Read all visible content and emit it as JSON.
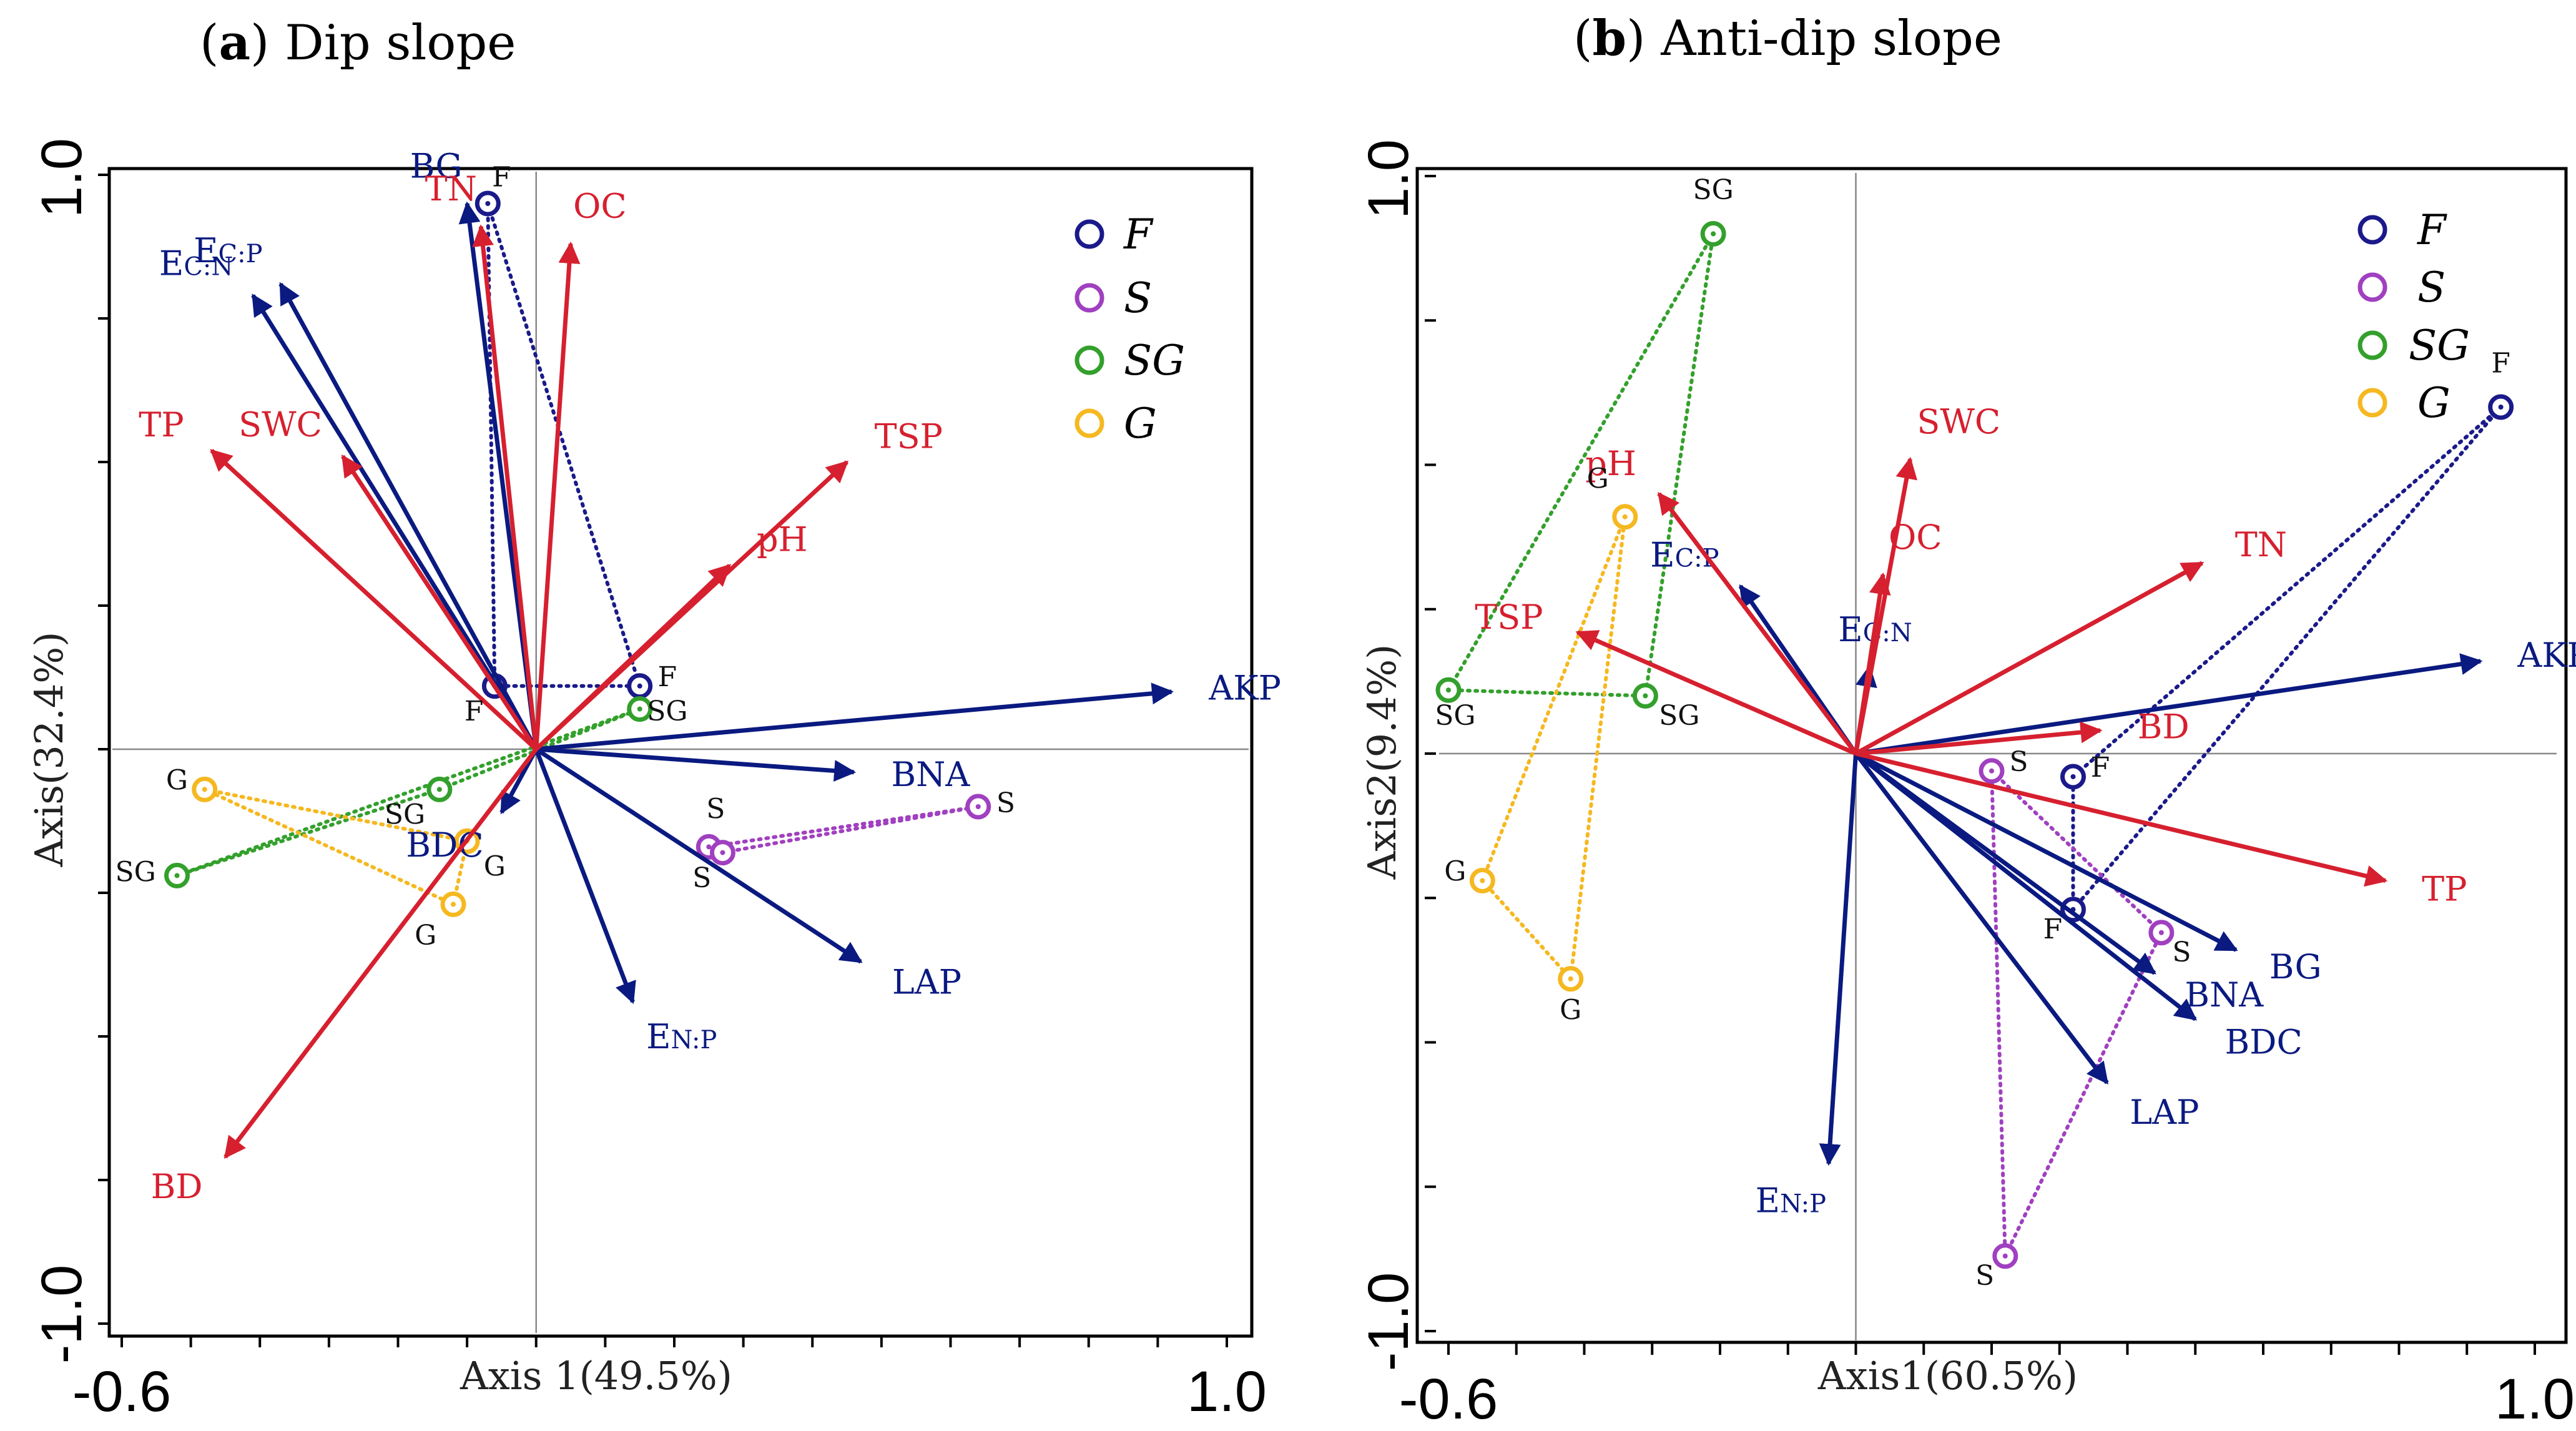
{
  "colors": {
    "env_vector": "#d6202f",
    "enzyme_vector": "#0a1a80",
    "F": "#1a1a8a",
    "S": "#a040c0",
    "SG": "#33a02c",
    "G": "#f5b820"
  },
  "chart_data": [
    {
      "type": "scatter",
      "panel_letter": "a",
      "title": "Dip slope",
      "xlabel": "Axis 1(49.5%)",
      "ylabel": "Axis(32.4%)",
      "xlim": [
        -0.6,
        1.0
      ],
      "ylim": [
        -1.0,
        1.0
      ],
      "x_tick_labels": [
        "-0.6",
        "1.0"
      ],
      "y_tick_labels": [
        "1.0",
        "-1.0"
      ],
      "legend": [
        "F",
        "S",
        "SG",
        "G"
      ],
      "env_vectors": [
        {
          "name": "TN",
          "x": -0.08,
          "y": 0.91
        },
        {
          "name": "OC",
          "x": 0.05,
          "y": 0.88
        },
        {
          "name": "TSP",
          "x": 0.45,
          "y": 0.5
        },
        {
          "name": "pH",
          "x": 0.28,
          "y": 0.32
        },
        {
          "name": "TP",
          "x": -0.47,
          "y": 0.52
        },
        {
          "name": "SWC",
          "x": -0.28,
          "y": 0.51
        },
        {
          "name": "BD",
          "x": -0.45,
          "y": -0.71
        }
      ],
      "enzyme_vectors": [
        {
          "name": "BG",
          "x": -0.1,
          "y": 0.95
        },
        {
          "name": "EC:P",
          "x": -0.37,
          "y": 0.81
        },
        {
          "name": "EC:N",
          "x": -0.41,
          "y": 0.79
        },
        {
          "name": "AKP",
          "x": 0.92,
          "y": 0.1
        },
        {
          "name": "BNA",
          "x": 0.46,
          "y": -0.04
        },
        {
          "name": "LAP",
          "x": 0.47,
          "y": -0.37
        },
        {
          "name": "EN:P",
          "x": 0.14,
          "y": -0.44
        },
        {
          "name": "BDC",
          "x": -0.05,
          "y": -0.11
        }
      ],
      "site_groups": [
        {
          "group": "F",
          "points": [
            {
              "x": -0.07,
              "y": 0.95
            },
            {
              "x": -0.06,
              "y": 0.11
            },
            {
              "x": 0.15,
              "y": 0.11
            }
          ]
        },
        {
          "group": "S",
          "points": [
            {
              "x": 0.25,
              "y": -0.17
            },
            {
              "x": 0.27,
              "y": -0.18
            },
            {
              "x": 0.64,
              "y": -0.1
            }
          ]
        },
        {
          "group": "SG",
          "points": [
            {
              "x": -0.14,
              "y": -0.07
            },
            {
              "x": -0.52,
              "y": -0.22
            },
            {
              "x": 0.15,
              "y": 0.07
            }
          ]
        },
        {
          "group": "G",
          "points": [
            {
              "x": -0.48,
              "y": -0.07
            },
            {
              "x": -0.1,
              "y": -0.16
            },
            {
              "x": -0.12,
              "y": -0.27
            }
          ]
        }
      ],
      "site_labels": [
        {
          "text": "F",
          "x": -0.05,
          "y": 0.98
        },
        {
          "text": "F",
          "x": -0.09,
          "y": 0.05
        },
        {
          "text": "F",
          "x": 0.19,
          "y": 0.11
        },
        {
          "text": "S",
          "x": 0.26,
          "y": -0.12
        },
        {
          "text": "S",
          "x": 0.24,
          "y": -0.24
        },
        {
          "text": "S",
          "x": 0.68,
          "y": -0.11
        },
        {
          "text": "SG",
          "x": 0.19,
          "y": 0.05
        },
        {
          "text": "SG",
          "x": -0.19,
          "y": -0.13
        },
        {
          "text": "SG",
          "x": -0.58,
          "y": -0.23
        },
        {
          "text": "G",
          "x": -0.52,
          "y": -0.07
        },
        {
          "text": "G",
          "x": -0.06,
          "y": -0.22
        },
        {
          "text": "G",
          "x": -0.16,
          "y": -0.34
        }
      ]
    },
    {
      "type": "scatter",
      "panel_letter": "b",
      "title": "Anti-dip slope",
      "xlabel": "Axis1(60.5%)",
      "ylabel": "Axis2(9.4%)",
      "xlim": [
        -0.6,
        1.0
      ],
      "ylim": [
        -1.0,
        1.0
      ],
      "x_tick_labels": [
        "-0.6",
        "1.0"
      ],
      "y_tick_labels": [
        "1.0",
        "-1.0"
      ],
      "legend": [
        "F",
        "S",
        "SG",
        "G"
      ],
      "env_vectors": [
        {
          "name": "SWC",
          "x": 0.08,
          "y": 0.51
        },
        {
          "name": "OC",
          "x": 0.04,
          "y": 0.31
        },
        {
          "name": "pH",
          "x": -0.29,
          "y": 0.45
        },
        {
          "name": "TN",
          "x": 0.51,
          "y": 0.33
        },
        {
          "name": "TSP",
          "x": -0.41,
          "y": 0.21
        },
        {
          "name": "BD",
          "x": 0.36,
          "y": 0.04
        },
        {
          "name": "TP",
          "x": 0.78,
          "y": -0.22
        }
      ],
      "enzyme_vectors": [
        {
          "name": "EC:P",
          "x": -0.17,
          "y": 0.29
        },
        {
          "name": "EC:N",
          "x": 0.02,
          "y": 0.15
        },
        {
          "name": "AKP",
          "x": 0.92,
          "y": 0.16
        },
        {
          "name": "BG",
          "x": 0.56,
          "y": -0.34
        },
        {
          "name": "BNA",
          "x": 0.44,
          "y": -0.38
        },
        {
          "name": "BDC",
          "x": 0.5,
          "y": -0.46
        },
        {
          "name": "LAP",
          "x": 0.37,
          "y": -0.57
        },
        {
          "name": "EN:P",
          "x": -0.04,
          "y": -0.71
        }
      ],
      "site_groups": [
        {
          "group": "F",
          "points": [
            {
              "x": 0.95,
              "y": 0.6
            },
            {
              "x": 0.32,
              "y": -0.04
            },
            {
              "x": 0.32,
              "y": -0.27
            }
          ]
        },
        {
          "group": "S",
          "points": [
            {
              "x": 0.2,
              "y": -0.03
            },
            {
              "x": 0.45,
              "y": -0.31
            },
            {
              "x": 0.22,
              "y": -0.87
            }
          ]
        },
        {
          "group": "SG",
          "points": [
            {
              "x": -0.21,
              "y": 0.9
            },
            {
              "x": -0.6,
              "y": 0.11
            },
            {
              "x": -0.31,
              "y": 0.1
            }
          ]
        },
        {
          "group": "G",
          "points": [
            {
              "x": -0.34,
              "y": 0.41
            },
            {
              "x": -0.55,
              "y": -0.22
            },
            {
              "x": -0.42,
              "y": -0.39
            }
          ]
        }
      ],
      "site_labels": [
        {
          "text": "F",
          "x": 0.95,
          "y": 0.66
        },
        {
          "text": "F",
          "x": 0.36,
          "y": -0.04
        },
        {
          "text": "F",
          "x": 0.29,
          "y": -0.32
        },
        {
          "text": "S",
          "x": 0.24,
          "y": -0.03
        },
        {
          "text": "S",
          "x": 0.48,
          "y": -0.36
        },
        {
          "text": "S",
          "x": 0.19,
          "y": -0.92
        },
        {
          "text": "SG",
          "x": -0.21,
          "y": 0.96
        },
        {
          "text": "SG",
          "x": -0.59,
          "y": 0.05
        },
        {
          "text": "SG",
          "x": -0.26,
          "y": 0.05
        },
        {
          "text": "G",
          "x": -0.38,
          "y": 0.46
        },
        {
          "text": "G",
          "x": -0.59,
          "y": -0.22
        },
        {
          "text": "G",
          "x": -0.42,
          "y": -0.46
        }
      ]
    }
  ]
}
